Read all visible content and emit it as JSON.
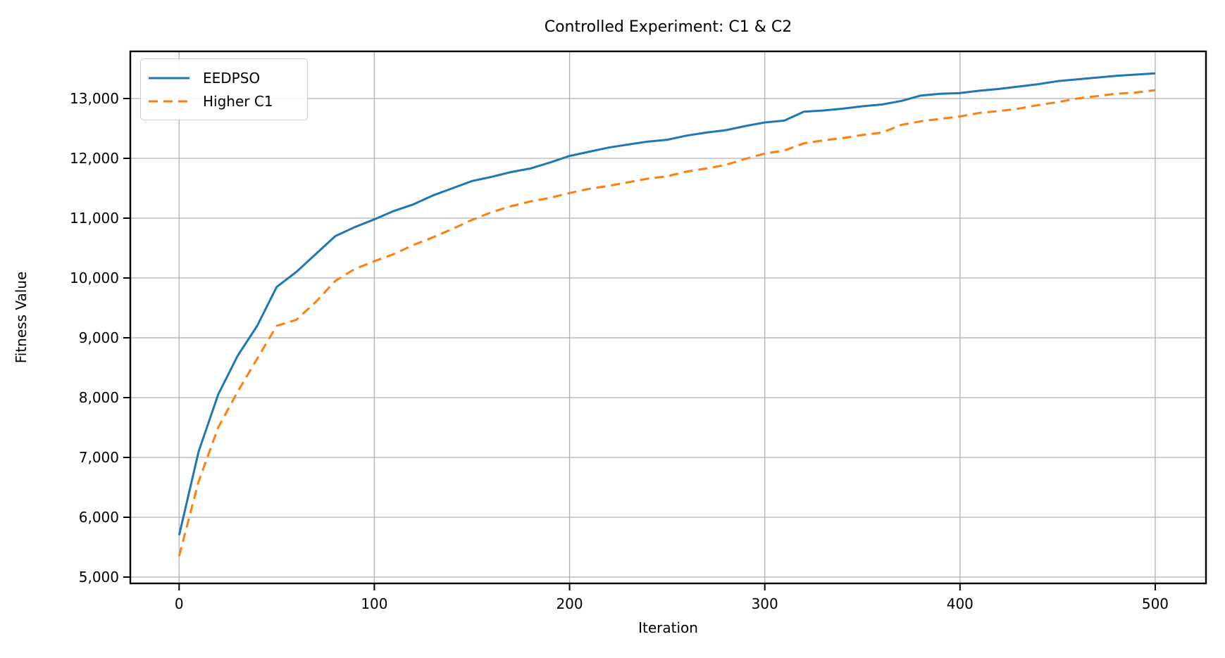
{
  "figure": {
    "title": "Controlled Experiment: C1 & C2",
    "xlabel": "Iteration",
    "ylabel": "Fitness Value"
  },
  "legend": {
    "position": "upper left",
    "items": [
      {
        "label": "EEDPSO",
        "color": "#1f77b4",
        "line_style": "solid"
      },
      {
        "label": "Higher C1",
        "color": "#ff7f0e",
        "line_style": "dashed"
      }
    ]
  },
  "chart_data": {
    "type": "line",
    "title": "Controlled Experiment: C1 & C2",
    "xlabel": "Iteration",
    "ylabel": "Fitness Value",
    "grid": true,
    "legend_position": "upper left",
    "xlim": [
      -25,
      526
    ],
    "ylim": [
      4894,
      13788
    ],
    "x_ticks": [
      0,
      100,
      200,
      300,
      400,
      500
    ],
    "x_tick_labels": [
      "0",
      "100",
      "200",
      "300",
      "400",
      "500"
    ],
    "y_ticks": [
      5000,
      6000,
      7000,
      8000,
      9000,
      10000,
      11000,
      12000,
      13000
    ],
    "y_tick_labels": [
      "5,000",
      "6,000",
      "7,000",
      "8,000",
      "9,000",
      "10,000",
      "11,000",
      "12,000",
      "13,000"
    ],
    "x": [
      0,
      10,
      20,
      30,
      40,
      50,
      60,
      70,
      80,
      90,
      100,
      110,
      120,
      130,
      140,
      150,
      160,
      170,
      180,
      190,
      200,
      210,
      220,
      230,
      240,
      250,
      260,
      270,
      280,
      290,
      300,
      310,
      320,
      330,
      340,
      350,
      360,
      370,
      380,
      390,
      400,
      410,
      420,
      430,
      440,
      450,
      460,
      470,
      480,
      490,
      500
    ],
    "series": [
      {
        "name": "EEDPSO",
        "color": "#1f77b4",
        "line_style": "solid",
        "values": [
          5700,
          7100,
          8050,
          8700,
          9200,
          9850,
          10100,
          10400,
          10700,
          10850,
          10980,
          11120,
          11230,
          11380,
          11500,
          11620,
          11690,
          11770,
          11830,
          11930,
          12040,
          12110,
          12180,
          12230,
          12280,
          12310,
          12380,
          12430,
          12470,
          12540,
          12600,
          12630,
          12780,
          12800,
          12830,
          12870,
          12900,
          12960,
          13050,
          13080,
          13090,
          13130,
          13160,
          13200,
          13240,
          13290,
          13320,
          13350,
          13380,
          13400,
          13420
        ]
      },
      {
        "name": "Higher C1",
        "color": "#ff7f0e",
        "line_style": "dashed",
        "values": [
          5350,
          6600,
          7500,
          8100,
          8650,
          9200,
          9300,
          9600,
          9950,
          10150,
          10280,
          10400,
          10550,
          10680,
          10820,
          10970,
          11100,
          11200,
          11280,
          11340,
          11420,
          11490,
          11540,
          11600,
          11660,
          11700,
          11780,
          11830,
          11890,
          11990,
          12080,
          12130,
          12250,
          12300,
          12340,
          12390,
          12430,
          12560,
          12620,
          12660,
          12700,
          12760,
          12790,
          12830,
          12890,
          12940,
          13000,
          13040,
          13080,
          13100,
          13140
        ]
      }
    ]
  },
  "style": {
    "grid_color": "#b0b0b0",
    "spine_color": "#000000",
    "background": "#ffffff"
  }
}
